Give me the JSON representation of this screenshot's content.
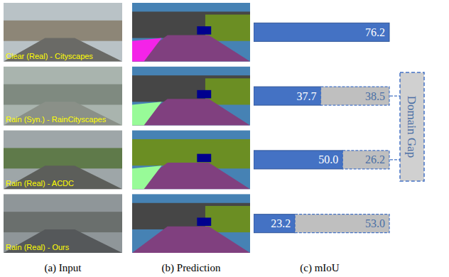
{
  "panels": [
    "(a) Input",
    "(b) Prediction"
  ],
  "chart_data": {
    "type": "bar",
    "orientation": "horizontal",
    "stacked": true,
    "title": "(c) mIoU",
    "categories": [
      "Clear (Real) - Cityscapes",
      "Rain (Syn.) - RainCityscapes",
      "Rain (Real) - ACDC",
      "Rain (Real) - Ours"
    ],
    "series": [
      {
        "color": "#4472c4",
        "values": [
          76.2,
          37.7,
          50.0,
          23.2
        ],
        "value_labels": [
          "76.2",
          "37.7",
          "50.0",
          "23.2"
        ]
      },
      {
        "name": "Domain Gap",
        "color": "#bfbfbf",
        "values": [
          null,
          38.5,
          26.2,
          53.0
        ],
        "value_labels": [
          null,
          "38.5",
          "26.2",
          "53.0"
        ]
      }
    ],
    "xlim": [
      0,
      76.2
    ],
    "tick_labels": false,
    "data_labels": true
  }
}
